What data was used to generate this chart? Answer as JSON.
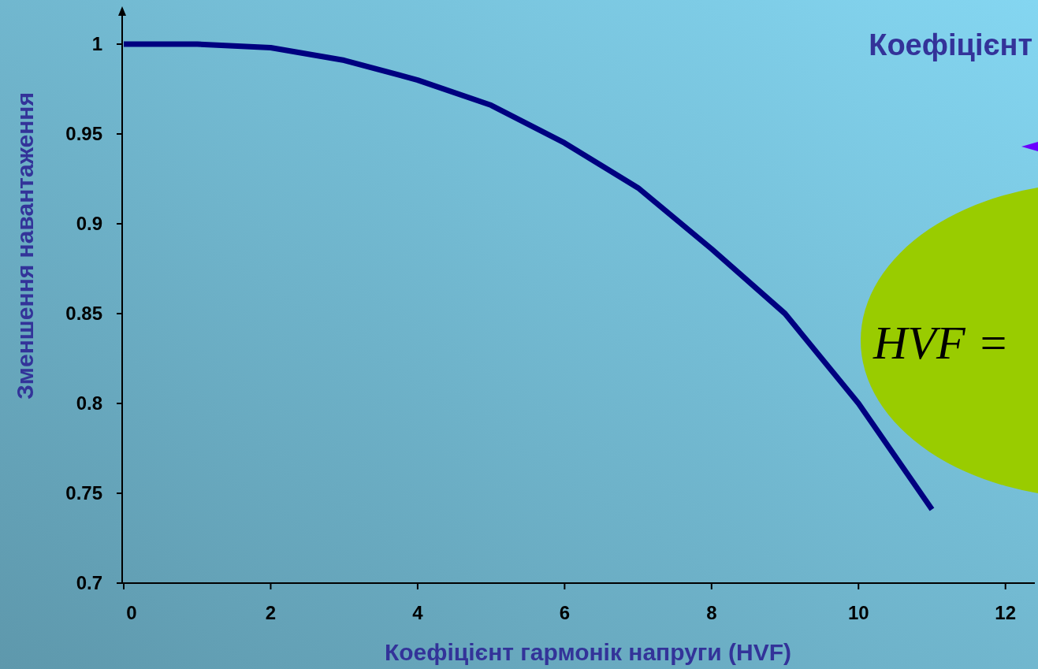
{
  "chart_data": {
    "type": "line",
    "xlabel": "Коефіцієнт  гармонік напруги (HVF)",
    "ylabel": "Зменшення навантаження",
    "x": [
      0,
      1,
      2,
      3,
      4,
      5,
      6,
      7,
      8,
      9,
      10,
      11
    ],
    "series": [
      {
        "color": "#000080",
        "values": [
          1.0,
          1.0,
          0.998,
          0.991,
          0.98,
          0.966,
          0.945,
          0.92,
          0.886,
          0.85,
          0.8,
          0.741
        ]
      }
    ],
    "xlim": [
      0,
      12.4
    ],
    "xticks": [
      0,
      2,
      4,
      6,
      8,
      10,
      12
    ],
    "ylim": [
      0.7,
      1.0
    ],
    "yticks": [
      0.7,
      0.75,
      0.8,
      0.85,
      0.9,
      0.95,
      1
    ],
    "grid": false,
    "marker": "none",
    "line_style": "solid",
    "annotations": [
      "Коефіцієнт",
      "HVF ="
    ]
  }
}
